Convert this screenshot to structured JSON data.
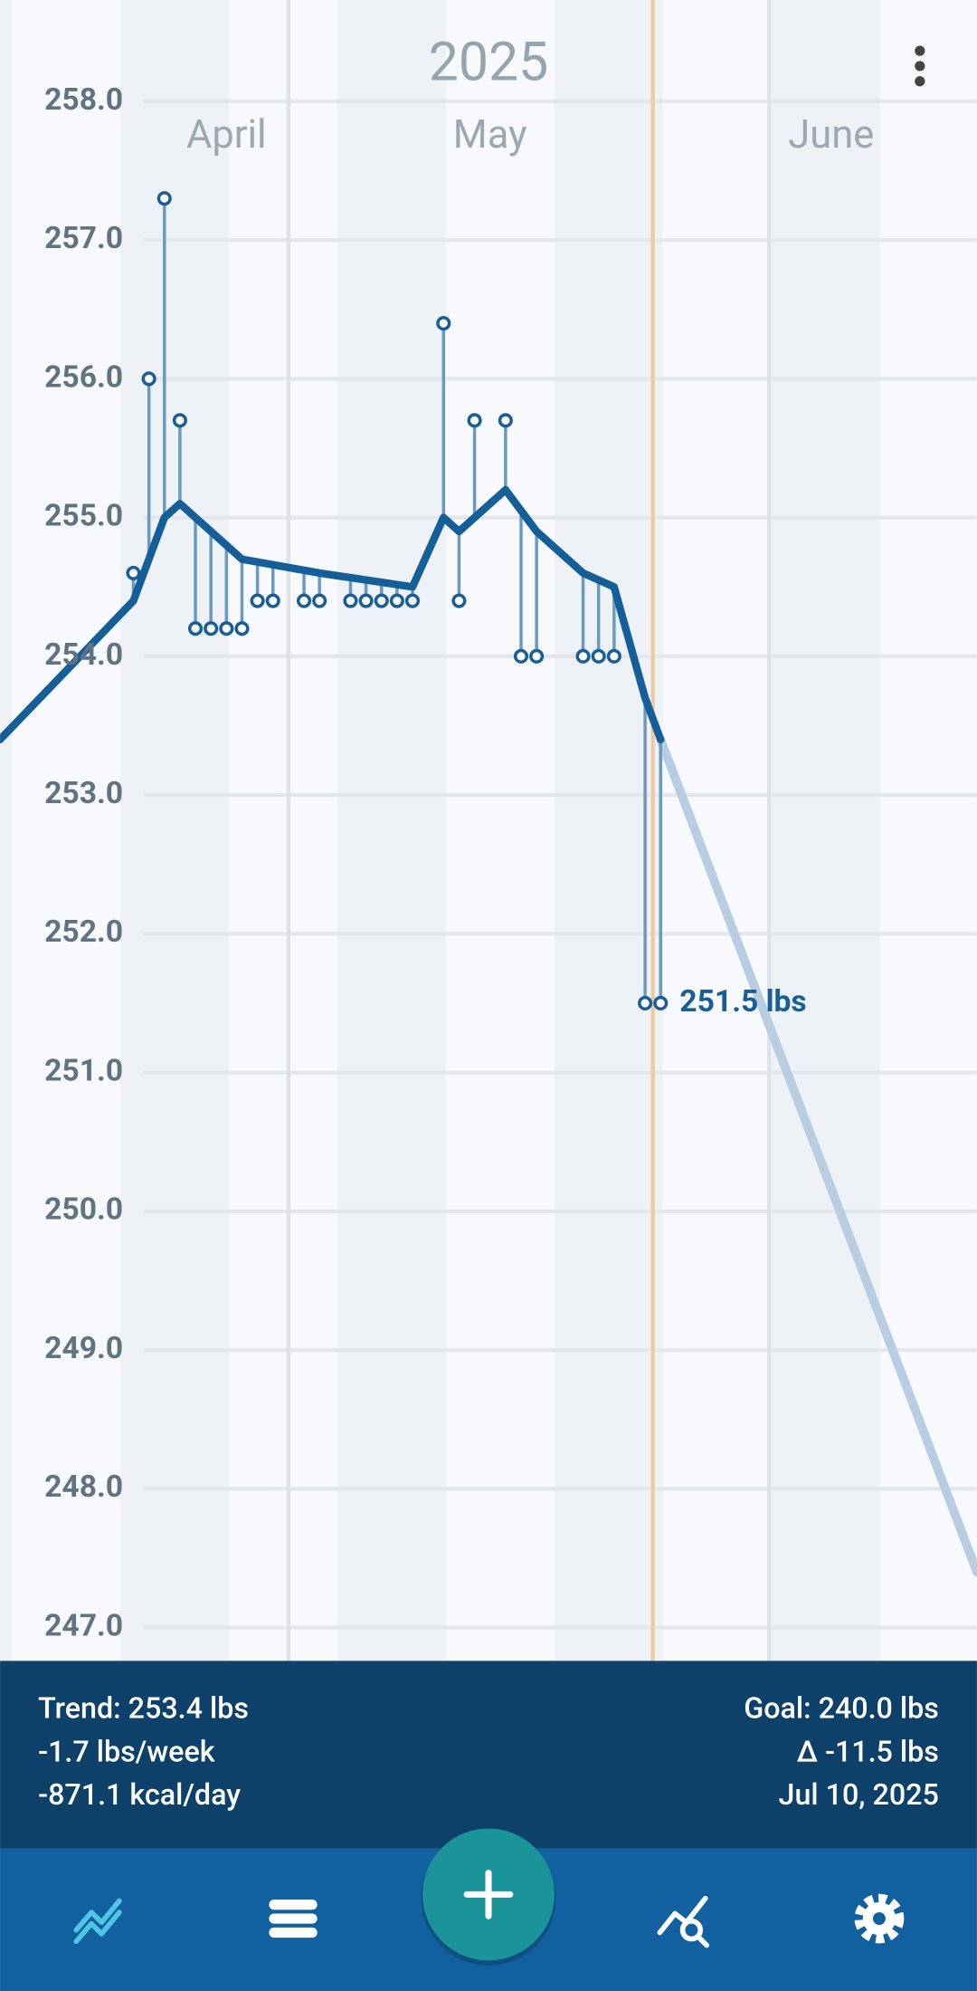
{
  "chart_data": {
    "type": "scatter",
    "title": "2025",
    "xlim": [
      -18.6,
      44.4
    ],
    "xticks": [
      {
        "value": -4,
        "label": "April"
      },
      {
        "value": 13,
        "label": "May"
      },
      {
        "value": 35,
        "label": "June"
      }
    ],
    "month_lines": [
      0,
      31
    ],
    "today": 23.5,
    "ylim": [
      246.76,
      258.73
    ],
    "yticks": [
      {
        "value": 247,
        "label": "247.0"
      },
      {
        "value": 248,
        "label": "248.0"
      },
      {
        "value": 249,
        "label": "249.0"
      },
      {
        "value": 250,
        "label": "250.0"
      },
      {
        "value": 251,
        "label": "251.0"
      },
      {
        "value": 252,
        "label": "252.0"
      },
      {
        "value": 253,
        "label": "253.0"
      },
      {
        "value": 254,
        "label": "254.0"
      },
      {
        "value": 255,
        "label": "255.0"
      },
      {
        "value": 256,
        "label": "256.0"
      },
      {
        "value": 257,
        "label": "257.0"
      },
      {
        "value": 258,
        "label": "258.0"
      }
    ],
    "grid": true,
    "weights": {
      "color": "#1a5e96",
      "x": [
        -10,
        -9,
        -8,
        -7,
        -6,
        -5,
        -4,
        -3,
        -2,
        -1,
        1,
        2,
        4,
        5,
        6,
        7,
        8,
        10,
        11,
        12,
        14,
        15,
        16,
        19,
        20,
        21,
        23,
        24
      ],
      "values": [
        254.6,
        256.0,
        257.3,
        255.7,
        254.2,
        254.2,
        254.2,
        254.2,
        254.4,
        254.4,
        254.4,
        254.4,
        254.4,
        254.4,
        254.4,
        254.4,
        254.4,
        256.4,
        254.4,
        255.7,
        255.7,
        254.0,
        254.0,
        254.0,
        254.0,
        254.0,
        251.5,
        251.5
      ]
    },
    "trend": {
      "color": "#155f99",
      "x": [
        -18.6,
        -10,
        -9,
        -8,
        -7,
        -6,
        -3,
        2,
        8,
        10,
        11,
        14,
        16,
        19,
        21,
        23,
        24
      ],
      "values": [
        253.4,
        254.4,
        254.7,
        255.0,
        255.1,
        255.0,
        254.7,
        254.6,
        254.5,
        255.0,
        254.9,
        255.2,
        254.9,
        254.6,
        254.5,
        253.7,
        253.4
      ]
    },
    "projection": {
      "color": "#b6cde2",
      "x": [
        24,
        44.4
      ],
      "values": [
        253.4,
        247.4
      ]
    },
    "latest_label": "251.5 lbs"
  },
  "summary": {
    "trend": "Trend: 253.4 lbs",
    "rate": "-1.7 lbs/week",
    "energy": "-871.1 kcal/day",
    "goal": "Goal: 240.0 lbs",
    "delta": "Δ -11.5 lbs",
    "date": "Jul 10, 2025"
  }
}
